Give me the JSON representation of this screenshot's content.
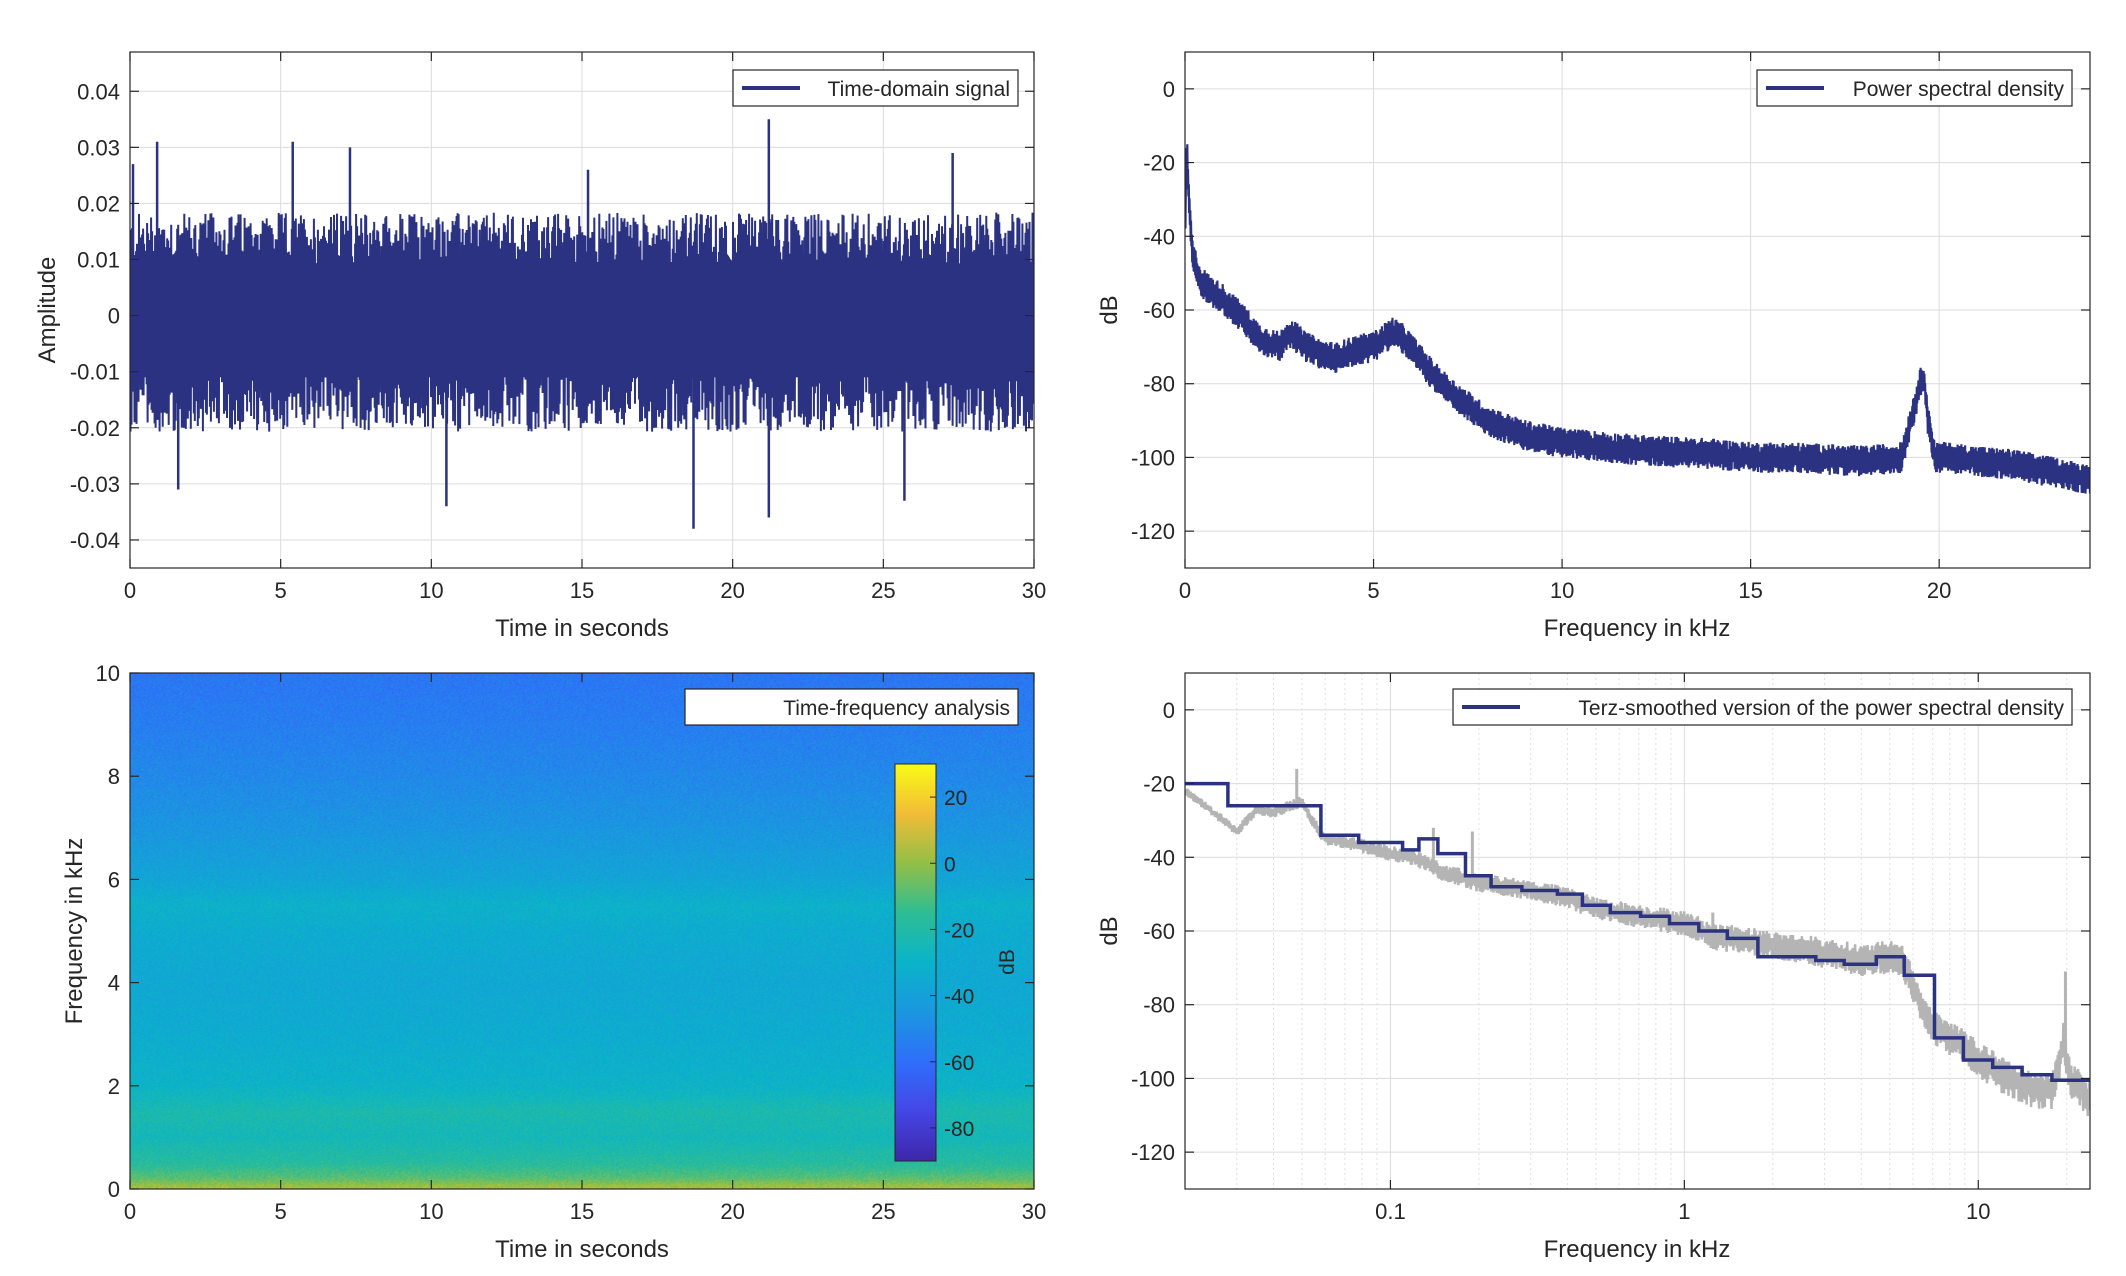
{
  "colors": {
    "series": "#2b3282",
    "raw_psd": "#b4b4b4",
    "grid": "#dcdcdc",
    "axes": "#262626"
  },
  "chart_data": [
    {
      "type": "line",
      "legend": "Time-domain signal",
      "legend_position": "top-right",
      "xlabel": "Time in seconds",
      "ylabel": "Amplitude",
      "xlim": [
        0,
        30
      ],
      "ylim": [
        -0.045,
        0.047
      ],
      "xticks": [
        0,
        5,
        10,
        15,
        20,
        25,
        30
      ],
      "xtick_labels": [
        "0",
        "5",
        "10",
        "15",
        "20",
        "25",
        "30"
      ],
      "yticks": [
        -0.04,
        -0.03,
        -0.02,
        -0.01,
        0,
        0.01,
        0.02,
        0.03,
        0.04
      ],
      "ytick_labels": [
        "-0.04",
        "-0.03",
        "-0.02",
        "-0.01",
        "0",
        "0.01",
        "0.02",
        "0.03",
        "0.04"
      ],
      "grid": true,
      "envelope": {
        "upper": 0.016,
        "lower": -0.018
      },
      "peaks": [
        {
          "x": 0.1,
          "y": 0.027
        },
        {
          "x": 0.9,
          "y": 0.031
        },
        {
          "x": 1.6,
          "y": -0.031
        },
        {
          "x": 5.4,
          "y": 0.031
        },
        {
          "x": 7.3,
          "y": 0.03
        },
        {
          "x": 10.5,
          "y": -0.034
        },
        {
          "x": 15.2,
          "y": 0.026
        },
        {
          "x": 18.7,
          "y": -0.038
        },
        {
          "x": 21.2,
          "y": 0.035
        },
        {
          "x": 21.2,
          "y": -0.036
        },
        {
          "x": 25.7,
          "y": -0.033
        },
        {
          "x": 27.3,
          "y": 0.029
        }
      ]
    },
    {
      "type": "line",
      "legend": "Power spectral density",
      "legend_position": "top-right",
      "xlabel": "Frequency in kHz",
      "ylabel": "dB",
      "xlim": [
        0,
        24
      ],
      "ylim": [
        -130,
        10
      ],
      "xticks": [
        0,
        5,
        10,
        15,
        20
      ],
      "xtick_labels": [
        "0",
        "5",
        "10",
        "15",
        "20"
      ],
      "yticks": [
        -120,
        -100,
        -80,
        -60,
        -40,
        -20,
        0
      ],
      "ytick_labels": [
        "-120",
        "-100",
        "-80",
        "-60",
        "-40",
        "-20",
        "0"
      ],
      "grid": true,
      "x": [
        0,
        0.05,
        0.1,
        0.2,
        0.4,
        0.7,
        1.0,
        1.5,
        2.0,
        2.5,
        2.8,
        3.2,
        3.6,
        4.0,
        4.5,
        5.0,
        5.5,
        5.8,
        6.2,
        6.6,
        7.0,
        7.5,
        8.0,
        9.0,
        10.0,
        11.0,
        12.0,
        13.0,
        14.0,
        15.0,
        16.0,
        17.0,
        18.0,
        19.0,
        19.3,
        19.5,
        19.6,
        19.7,
        19.9,
        20.2,
        21.0,
        22.0,
        23.0,
        24.0
      ],
      "y": [
        -40,
        -15,
        -30,
        -45,
        -52,
        -55,
        -57,
        -62,
        -68,
        -70,
        -66,
        -70,
        -72,
        -73,
        -71,
        -70,
        -66,
        -68,
        -73,
        -78,
        -82,
        -86,
        -90,
        -94,
        -96,
        -97,
        -98,
        -98.5,
        -99,
        -100,
        -100,
        -100.5,
        -101,
        -100,
        -88,
        -80,
        -78,
        -90,
        -100,
        -100,
        -101,
        -102,
        -104,
        -106
      ],
      "spread": 3.5
    },
    {
      "type": "heatmap",
      "legend": "Time-frequency analysis",
      "legend_position": "top-right",
      "xlabel": "Time in seconds",
      "ylabel": "Frequency in kHz",
      "xlim": [
        0,
        30
      ],
      "ylim": [
        0,
        10
      ],
      "xticks": [
        0,
        5,
        10,
        15,
        20,
        25,
        30
      ],
      "xtick_labels": [
        "0",
        "5",
        "10",
        "15",
        "20",
        "25",
        "30"
      ],
      "yticks": [
        0,
        2,
        4,
        6,
        8,
        10
      ],
      "ytick_labels": [
        "0",
        "2",
        "4",
        "6",
        "8",
        "10"
      ],
      "colorbar": {
        "label": "dB",
        "range": [
          -90,
          30
        ],
        "ticks": [
          -80,
          -60,
          -40,
          -20,
          0,
          20
        ],
        "tick_labels": [
          "-80",
          "-60",
          "-40",
          "-20",
          "0",
          "20"
        ]
      },
      "level_by_frequency": {
        "freq_khz": [
          0,
          0.2,
          0.5,
          1.0,
          1.5,
          2.0,
          3.0,
          4.0,
          5.0,
          5.5,
          6.0,
          7.0,
          8.0,
          9.0,
          10.0
        ],
        "db": [
          5,
          -8,
          -18,
          -25,
          -22,
          -30,
          -34,
          -36,
          -34,
          -31,
          -38,
          -45,
          -50,
          -54,
          -57
        ]
      }
    },
    {
      "type": "line",
      "legend": "Terz-smoothed version of the power spectral density",
      "legend_position": "top-right",
      "xlabel": "Frequency in kHz",
      "ylabel": "dB",
      "xscale": "log",
      "xlim": [
        0.02,
        24
      ],
      "ylim": [
        -130,
        10
      ],
      "xticks": [
        0.1,
        1,
        10
      ],
      "xtick_labels": [
        "0.1",
        "1",
        "10"
      ],
      "yticks": [
        -120,
        -100,
        -80,
        -60,
        -40,
        -20,
        0
      ],
      "ytick_labels": [
        "-120",
        "-100",
        "-80",
        "-60",
        "-40",
        "-20",
        "0"
      ],
      "grid": true,
      "smoothed_steps": {
        "edges": [
          0.02,
          0.028,
          0.052,
          0.058,
          0.078,
          0.11,
          0.125,
          0.145,
          0.18,
          0.22,
          0.28,
          0.37,
          0.45,
          0.56,
          0.71,
          0.89,
          1.12,
          1.4,
          1.78,
          2.2,
          2.8,
          3.5,
          4.5,
          5.6,
          7.1,
          8.9,
          11.2,
          14.1,
          17.8,
          24
        ],
        "levels": [
          -20,
          -26,
          -26,
          -34,
          -36,
          -38,
          -35,
          -39,
          -45,
          -48,
          -49,
          -50,
          -53,
          -55,
          -56,
          -58,
          -60,
          -62,
          -67,
          -67,
          -68,
          -69,
          -67,
          -72,
          -89,
          -95,
          -97,
          -99,
          -100.5
        ]
      },
      "raw_psd": {
        "x": [
          0.02,
          0.025,
          0.03,
          0.035,
          0.04,
          0.045,
          0.05,
          0.055,
          0.06,
          0.07,
          0.08,
          0.09,
          0.1,
          0.12,
          0.15,
          0.2,
          0.3,
          0.4,
          0.5,
          0.7,
          1.0,
          1.3,
          1.5,
          2.0,
          3.0,
          4.0,
          5.0,
          5.5,
          6.0,
          6.5,
          7.0,
          8.0,
          9.0,
          10.0,
          12.0,
          15.0,
          18.0,
          19.5,
          20.5,
          24.0
        ],
        "y": [
          -22,
          -28,
          -33,
          -27,
          -28,
          -26,
          -25,
          -31,
          -35,
          -36,
          -37,
          -38,
          -39,
          -40,
          -44,
          -47,
          -49,
          -51,
          -54,
          -56,
          -58,
          -62,
          -62,
          -64,
          -66,
          -68,
          -67,
          -68,
          -75,
          -82,
          -86,
          -89,
          -91,
          -95,
          -99,
          -103,
          -103,
          -90,
          -100,
          -106
        ]
      },
      "raw_spikes": [
        {
          "x": 0.048,
          "y": -16
        },
        {
          "x": 0.14,
          "y": -32
        },
        {
          "x": 0.19,
          "y": -33
        },
        {
          "x": 1.25,
          "y": -55
        },
        {
          "x": 5.5,
          "y": -64
        },
        {
          "x": 19.8,
          "y": -71
        }
      ]
    }
  ]
}
